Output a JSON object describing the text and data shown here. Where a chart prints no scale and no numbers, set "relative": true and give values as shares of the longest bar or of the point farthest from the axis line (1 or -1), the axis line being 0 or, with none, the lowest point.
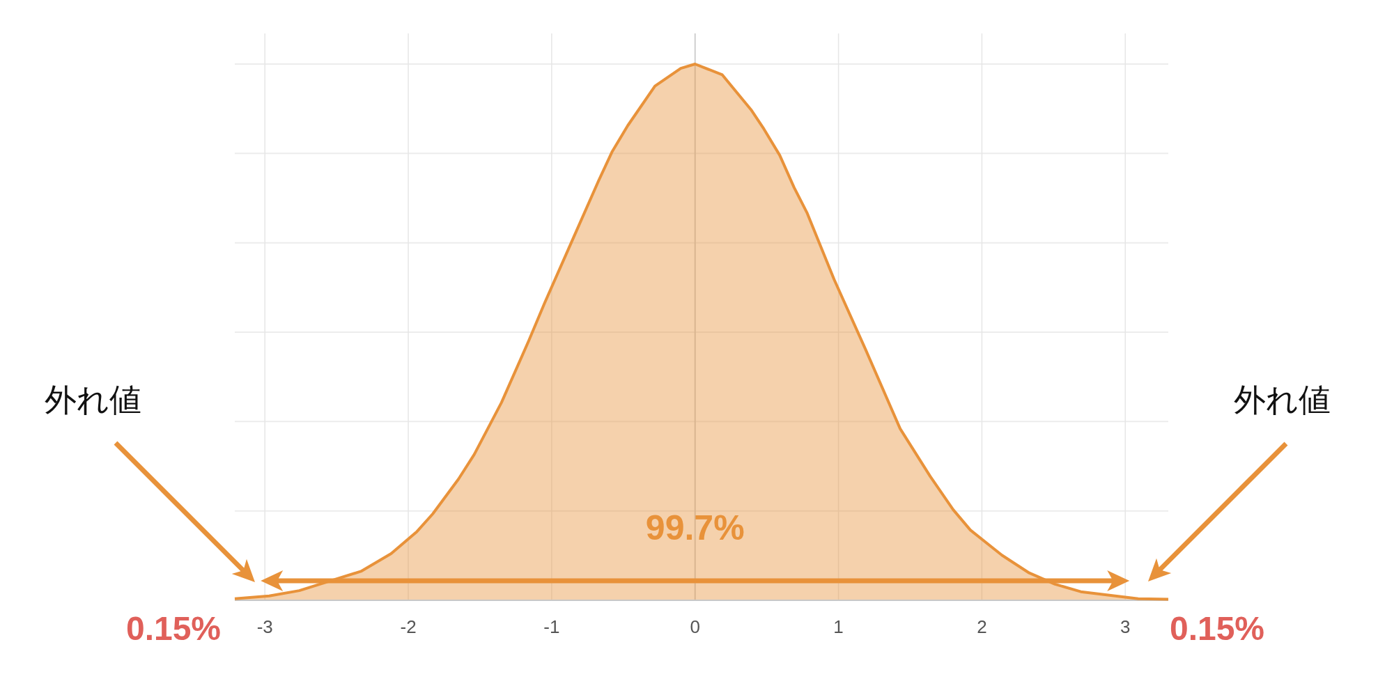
{
  "chart_data": {
    "type": "area",
    "relative": true,
    "color": "#e8923a",
    "x": [
      -3.21,
      -2.97,
      -2.76,
      -2.33,
      -2.12,
      -1.94,
      -1.83,
      -1.65,
      -1.54,
      -1.35,
      -1.16,
      -1.05,
      -0.86,
      -0.67,
      -0.58,
      -0.47,
      -0.28,
      -0.1,
      0,
      0.19,
      0.39,
      0.48,
      0.59,
      0.69,
      0.78,
      0.97,
      1.19,
      1.43,
      1.64,
      1.8,
      1.92,
      2.14,
      2.33,
      2.51,
      2.69,
      2.87,
      3.09,
      3.3
    ],
    "values": [
      0.003,
      0.008,
      0.018,
      0.054,
      0.087,
      0.128,
      0.161,
      0.226,
      0.272,
      0.369,
      0.484,
      0.554,
      0.669,
      0.784,
      0.836,
      0.885,
      0.959,
      0.992,
      1,
      0.98,
      0.915,
      0.879,
      0.83,
      0.77,
      0.723,
      0.598,
      0.467,
      0.32,
      0.231,
      0.169,
      0.131,
      0.084,
      0.051,
      0.03,
      0.016,
      0.01,
      0.003,
      0.002
    ],
    "xlim": [
      -3.21,
      3.3
    ],
    "xticks": [
      -3,
      -2,
      -1,
      0,
      1,
      2,
      3
    ],
    "grid": true,
    "annotations": [
      "外れ値",
      "外れ値",
      "0.15%",
      "0.15%",
      "99.7%"
    ]
  }
}
